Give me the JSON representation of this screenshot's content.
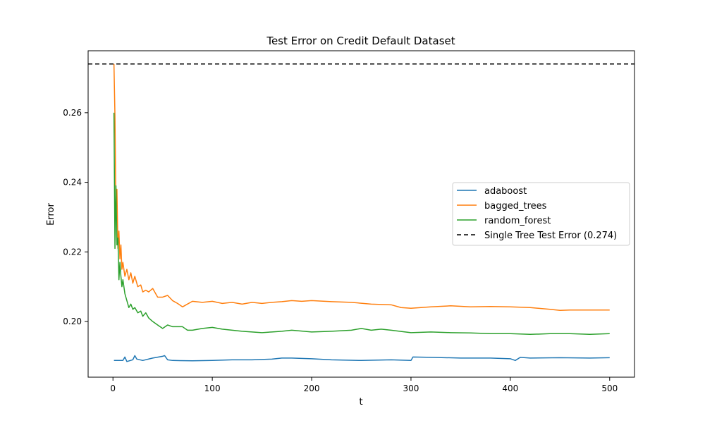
{
  "chart_data": {
    "type": "line",
    "title": "Test Error on Credit Default Dataset",
    "xlabel": "t",
    "ylabel": "Error",
    "xlim": [
      -25,
      525
    ],
    "ylim": [
      0.184,
      0.2778
    ],
    "xticks": [
      0,
      100,
      200,
      300,
      400,
      500
    ],
    "yticks": [
      0.2,
      0.22,
      0.24,
      0.26
    ],
    "ytick_labels": [
      "0.20",
      "0.22",
      "0.24",
      "0.26"
    ],
    "grid": false,
    "legend_position": "center-right",
    "series": [
      {
        "name": "adaboost",
        "color": "#1f77b4",
        "x": [
          1,
          10,
          12,
          14,
          20,
          22,
          24,
          30,
          40,
          50,
          52,
          55,
          60,
          80,
          100,
          120,
          140,
          160,
          170,
          180,
          200,
          220,
          250,
          280,
          300,
          302,
          320,
          350,
          380,
          400,
          405,
          410,
          420,
          450,
          480,
          500
        ],
        "y": [
          0.1888,
          0.1888,
          0.1898,
          0.1885,
          0.189,
          0.1902,
          0.1892,
          0.1888,
          0.1895,
          0.19,
          0.1902,
          0.189,
          0.1888,
          0.1887,
          0.1888,
          0.189,
          0.189,
          0.1892,
          0.1895,
          0.1895,
          0.1893,
          0.189,
          0.1888,
          0.189,
          0.1888,
          0.1898,
          0.1897,
          0.1895,
          0.1895,
          0.1893,
          0.1888,
          0.1897,
          0.1895,
          0.1896,
          0.1895,
          0.1896
        ]
      },
      {
        "name": "bagged_trees",
        "color": "#ff7f0e",
        "x": [
          1,
          2,
          3,
          4,
          5,
          6,
          7,
          8,
          9,
          10,
          12,
          14,
          16,
          18,
          20,
          22,
          25,
          28,
          30,
          33,
          36,
          40,
          45,
          50,
          55,
          60,
          65,
          70,
          75,
          80,
          90,
          100,
          110,
          120,
          130,
          140,
          150,
          160,
          170,
          180,
          190,
          200,
          220,
          240,
          260,
          280,
          290,
          300,
          310,
          320,
          340,
          360,
          380,
          400,
          420,
          440,
          450,
          460,
          480,
          500
        ],
        "y": [
          0.274,
          0.259,
          0.232,
          0.238,
          0.221,
          0.226,
          0.218,
          0.222,
          0.215,
          0.217,
          0.213,
          0.215,
          0.212,
          0.214,
          0.211,
          0.213,
          0.21,
          0.2105,
          0.2085,
          0.209,
          0.2085,
          0.2095,
          0.207,
          0.207,
          0.2075,
          0.206,
          0.2052,
          0.2042,
          0.205,
          0.2058,
          0.2055,
          0.2058,
          0.2052,
          0.2055,
          0.205,
          0.2055,
          0.2052,
          0.2055,
          0.2057,
          0.206,
          0.2058,
          0.206,
          0.2057,
          0.2055,
          0.205,
          0.2048,
          0.204,
          0.2038,
          0.204,
          0.2042,
          0.2045,
          0.2042,
          0.2043,
          0.2042,
          0.204,
          0.2035,
          0.2032,
          0.2033,
          0.2033,
          0.2033
        ]
      },
      {
        "name": "random_forest",
        "color": "#2ca02c",
        "x": [
          1,
          2,
          3,
          4,
          5,
          6,
          7,
          8,
          9,
          10,
          12,
          14,
          16,
          18,
          20,
          22,
          25,
          28,
          30,
          33,
          36,
          40,
          45,
          50,
          55,
          60,
          65,
          70,
          75,
          80,
          90,
          100,
          110,
          120,
          130,
          140,
          150,
          160,
          170,
          180,
          200,
          220,
          240,
          250,
          260,
          270,
          280,
          300,
          320,
          340,
          360,
          380,
          400,
          420,
          440,
          460,
          480,
          500
        ],
        "y": [
          0.26,
          0.221,
          0.239,
          0.222,
          0.224,
          0.212,
          0.217,
          0.213,
          0.21,
          0.212,
          0.208,
          0.206,
          0.204,
          0.205,
          0.2035,
          0.204,
          0.2025,
          0.203,
          0.2015,
          0.2025,
          0.201,
          0.2,
          0.199,
          0.198,
          0.199,
          0.1985,
          0.1985,
          0.1985,
          0.1975,
          0.1975,
          0.198,
          0.1983,
          0.1978,
          0.1975,
          0.1972,
          0.197,
          0.1968,
          0.197,
          0.1972,
          0.1975,
          0.197,
          0.1972,
          0.1975,
          0.198,
          0.1975,
          0.1978,
          0.1975,
          0.1968,
          0.197,
          0.1968,
          0.1967,
          0.1965,
          0.1965,
          0.1963,
          0.1965,
          0.1965,
          0.1963,
          0.1965
        ]
      }
    ],
    "reference_line": {
      "label": "Single Tree Test Error (0.274)",
      "y": 0.274,
      "color": "#000000",
      "style": "dashed"
    }
  }
}
